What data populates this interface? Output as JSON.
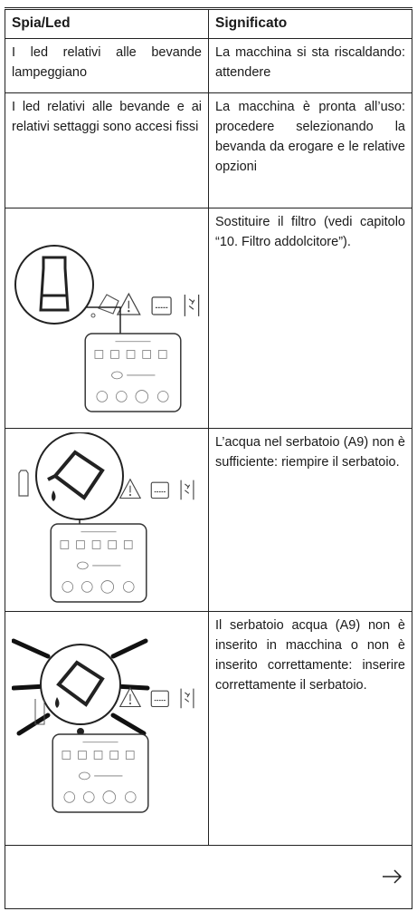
{
  "header": {
    "col1": "Spia/Led",
    "col2": "Significato"
  },
  "rows": [
    {
      "led": "I led relativi alle bevande lampeggiano",
      "meaning": "La macchina si sta riscaldando: attendere"
    },
    {
      "led": "I led relativi alle bevande e ai relativi settaggi sono accesi fissi",
      "meaning": "La macchina è pronta all’uso: procedere selezionando la bevanda da erogare e le relative opzioni"
    },
    {
      "meaning": "Sostituire il filtro (vedi capitolo “10. Filtro addolcitore”)."
    },
    {
      "meaning": "L’acqua nel serbatoio (A9) non è sufficiente: riempire il serbatoio."
    },
    {
      "meaning": "Il serbatoio acqua (A9) non è inserito in macchina o non è inserito correttamente: inserire correttamente il serbatoio."
    }
  ]
}
